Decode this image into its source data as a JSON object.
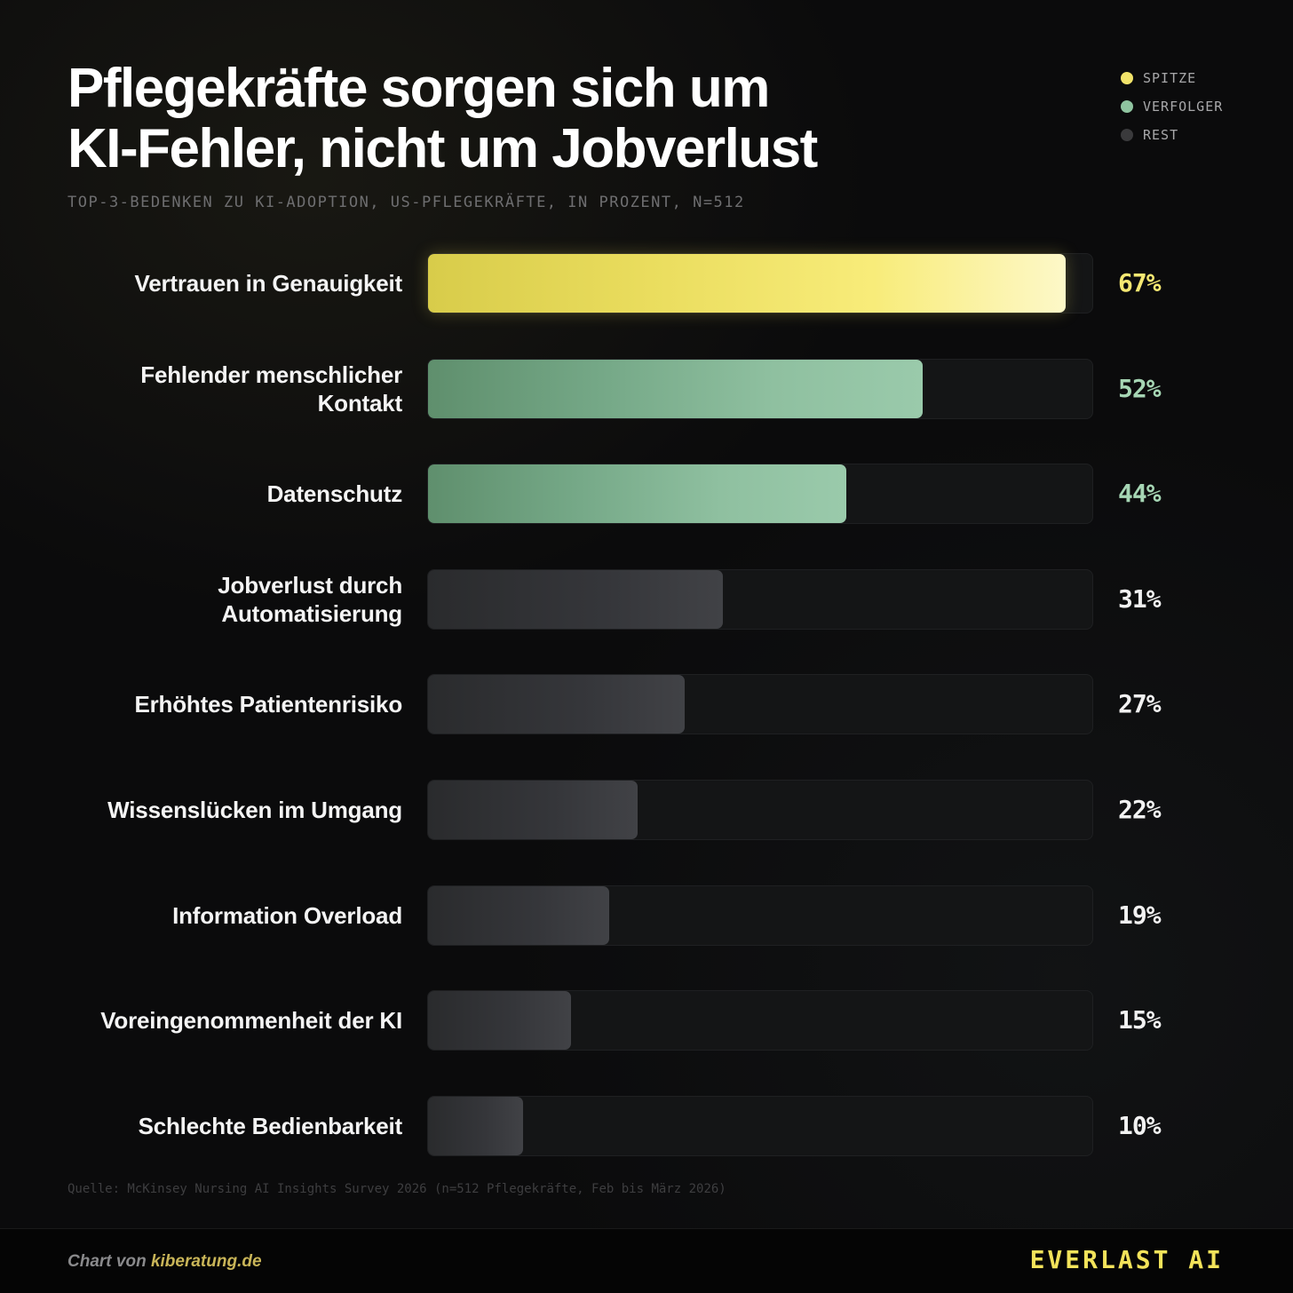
{
  "title_lines": [
    "Pflegekräfte sorgen sich um",
    "KI-Fehler, nicht um Jobverlust"
  ],
  "subtitle": "TOP-3-BEDENKEN ZU KI-ADOPTION, US-PFLEGEKRÄFTE, IN PROZENT, N=512",
  "legend": [
    {
      "label": "SPITZE",
      "color": "#f1e36a"
    },
    {
      "label": "VERFOLGER",
      "color": "#8fc4a0"
    },
    {
      "label": "REST",
      "color": "#3a3a3c"
    }
  ],
  "chart_data": {
    "type": "bar",
    "orientation": "horizontal",
    "title": "Pflegekräfte sorgen sich um KI-Fehler, nicht um Jobverlust",
    "subtitle": "TOP-3-BEDENKEN ZU KI-ADOPTION, US-PFLEGEKRÄFTE, IN PROZENT, N=512",
    "xlim": [
      0,
      70
    ],
    "unit": "%",
    "categories": [
      "Vertrauen in Genauigkeit",
      "Fehlender menschlicher Kontakt",
      "Datenschutz",
      "Jobverlust durch Automatisierung",
      "Erhöhtes Patientenrisiko",
      "Wissenslücken im Umgang",
      "Information Overload",
      "Voreingenommenheit der KI",
      "Schlechte Bedienbarkeit"
    ],
    "label_lines": [
      [
        "Vertrauen in Genauigkeit"
      ],
      [
        "Fehlender menschlicher",
        "Kontakt"
      ],
      [
        "Datenschutz"
      ],
      [
        "Jobverlust durch",
        "Automatisierung"
      ],
      [
        "Erhöhtes Patientenrisiko"
      ],
      [
        "Wissenslücken im Umgang"
      ],
      [
        "Information Overload"
      ],
      [
        "Voreingenommenheit der KI"
      ],
      [
        "Schlechte Bedienbarkeit"
      ]
    ],
    "values": [
      67,
      52,
      44,
      31,
      27,
      22,
      19,
      15,
      10
    ],
    "value_labels": [
      "67%",
      "52%",
      "44%",
      "31%",
      "27%",
      "22%",
      "19%",
      "15%",
      "10%"
    ],
    "groups": [
      "SPITZE",
      "VERFOLGER",
      "VERFOLGER",
      "REST",
      "REST",
      "REST",
      "REST",
      "REST",
      "REST"
    ],
    "grid": false,
    "legend_position": "top-right"
  },
  "source": "Quelle: McKinsey Nursing AI Insights Survey 2026 (n=512 Pflegekräfte, Feb bis März 2026)",
  "footer": {
    "credit_prefix": "Chart von ",
    "credit_link": "kiberatung.de",
    "brand": "EVERLAST AI"
  }
}
